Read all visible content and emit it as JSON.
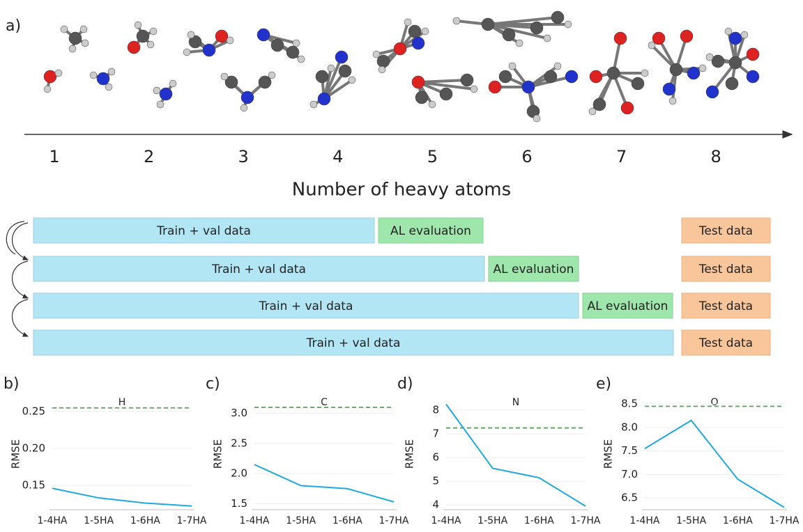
{
  "panel_a": {
    "label": "a)",
    "heavy_atoms": [
      1,
      2,
      3,
      4,
      5,
      6,
      7,
      8
    ],
    "axis_label": "Number of heavy atoms",
    "rows": [
      {
        "train": "Train + val data",
        "al": "AL evaluation",
        "test": "Test data"
      },
      {
        "train": "Train + val data",
        "al": "AL evaluation",
        "test": "Test data"
      },
      {
        "train": "Train + val data",
        "al": "AL evaluation",
        "test": "Test data"
      },
      {
        "train": "Train + val data",
        "test": "Test data"
      }
    ]
  },
  "chart_data": [
    {
      "type": "line",
      "panel": "b)",
      "title": "H",
      "ylabel": "RMSE",
      "categories": [
        "1-4HA",
        "1-5HA",
        "1-6HA",
        "1-7HA"
      ],
      "series": [
        {
          "color": "#1fa8e0",
          "values": [
            0.146,
            0.133,
            0.126,
            0.122
          ]
        }
      ],
      "baseline": {
        "value": 0.255,
        "color": "#5aa05a"
      },
      "ylim": [
        0.117,
        0.268
      ],
      "yticks": [
        0.15,
        {
          "value": 0.2,
          "label": "0.20"
        },
        0.25
      ],
      "grid": true
    },
    {
      "type": "line",
      "panel": "c)",
      "title": "C",
      "ylabel": "RMSE",
      "categories": [
        "1-4HA",
        "1-5HA",
        "1-6HA",
        "1-7HA"
      ],
      "series": [
        {
          "color": "#1fa8e0",
          "values": [
            2.15,
            1.8,
            1.75,
            1.53
          ]
        }
      ],
      "baseline": {
        "value": 3.1,
        "color": "#5aa05a"
      },
      "ylim": [
        1.4,
        3.25
      ],
      "yticks": [
        1.5,
        {
          "value": 2,
          "label": "2.0"
        },
        2.5,
        {
          "value": 3,
          "label": "3.0"
        }
      ],
      "grid": true
    },
    {
      "type": "line",
      "panel": "d)",
      "title": "N",
      "ylabel": "RMSE",
      "categories": [
        "1-4HA",
        "1-5HA",
        "1-6HA",
        "1-7HA"
      ],
      "series": [
        {
          "color": "#1fa8e0",
          "values": [
            8.25,
            5.55,
            5.15,
            3.95
          ]
        }
      ],
      "baseline": {
        "value": 7.25,
        "color": "#5aa05a"
      },
      "ylim": [
        3.8,
        8.5
      ],
      "yticks": [
        4,
        5,
        6,
        7,
        8
      ],
      "grid": true
    },
    {
      "type": "line",
      "panel": "e)",
      "title": "O",
      "ylabel": "RMSE",
      "categories": [
        "1-4HA",
        "1-5HA",
        "1-6HA",
        "1-7HA"
      ],
      "series": [
        {
          "color": "#1fa8e0",
          "values": [
            7.55,
            8.15,
            6.9,
            6.3
          ]
        }
      ],
      "baseline": {
        "value": 8.45,
        "color": "#5aa05a"
      },
      "ylim": [
        6.25,
        8.62
      ],
      "yticks": [
        6.5,
        {
          "value": 7,
          "label": "7.0"
        },
        7.5,
        {
          "value": 8,
          "label": "8.0"
        },
        8.5
      ],
      "grid": true
    }
  ]
}
